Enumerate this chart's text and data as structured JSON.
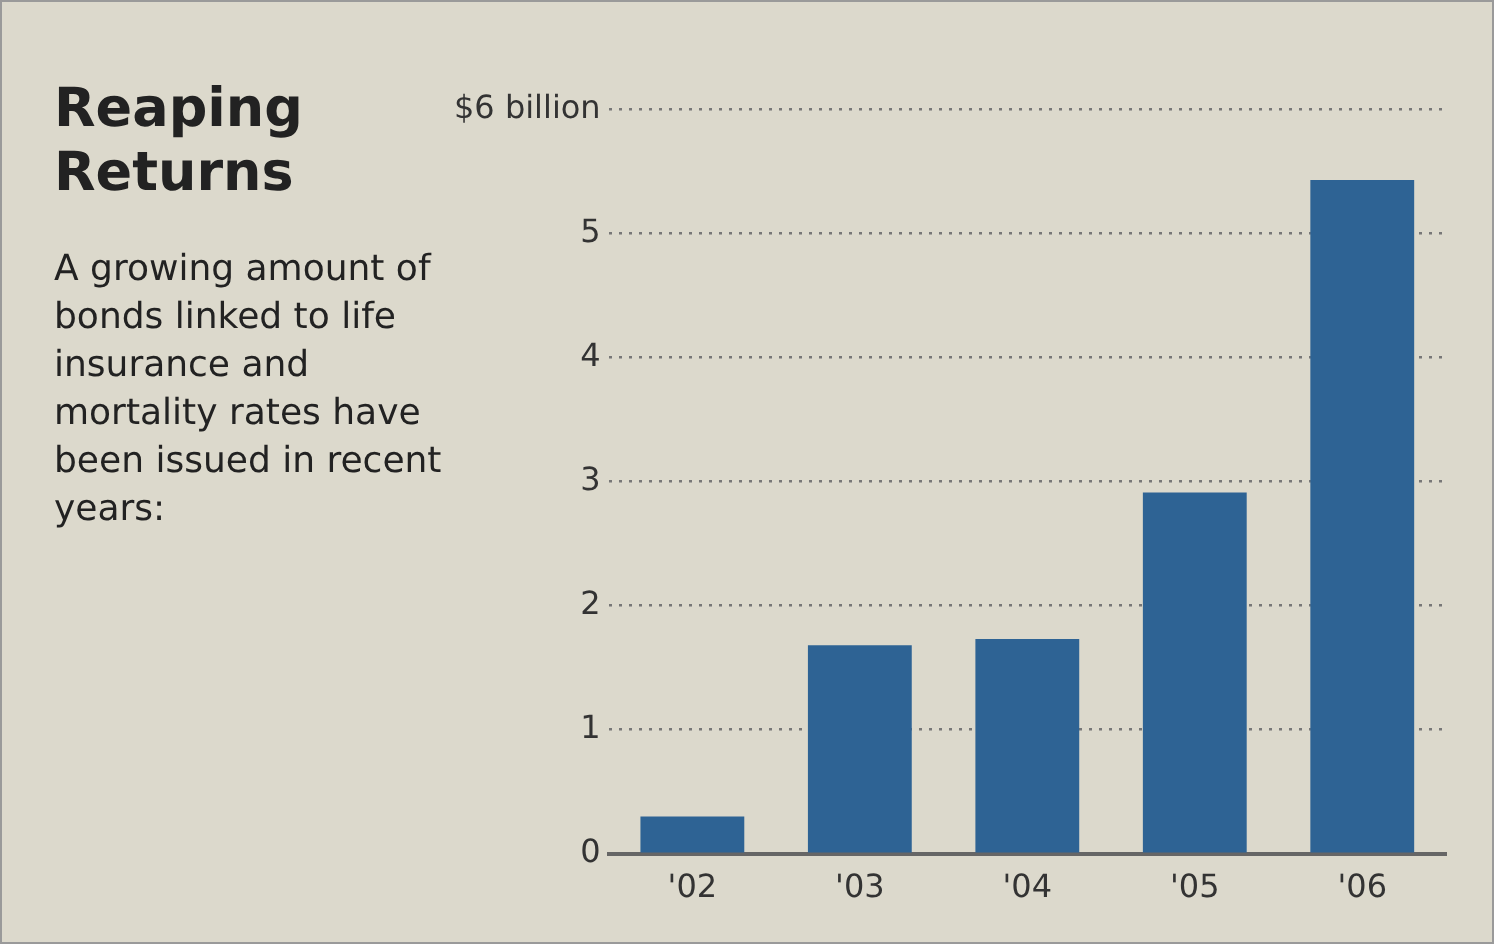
{
  "chart_data": {
    "type": "bar",
    "title": "Reaping Returns",
    "subtitle": "A growing amount of bonds linked to life insurance and mortality rates have been issued in recent years:",
    "categories": [
      "'02",
      "'03",
      "'04",
      "'05",
      "'06"
    ],
    "values": [
      0.3,
      1.68,
      1.73,
      2.91,
      5.43
    ],
    "color": "#2e6394",
    "ylim": [
      0,
      6
    ],
    "yticks": [
      0,
      1,
      2,
      3,
      4,
      5,
      {
        "value": 6,
        "label": "$6 billion"
      }
    ],
    "grid": "y"
  }
}
